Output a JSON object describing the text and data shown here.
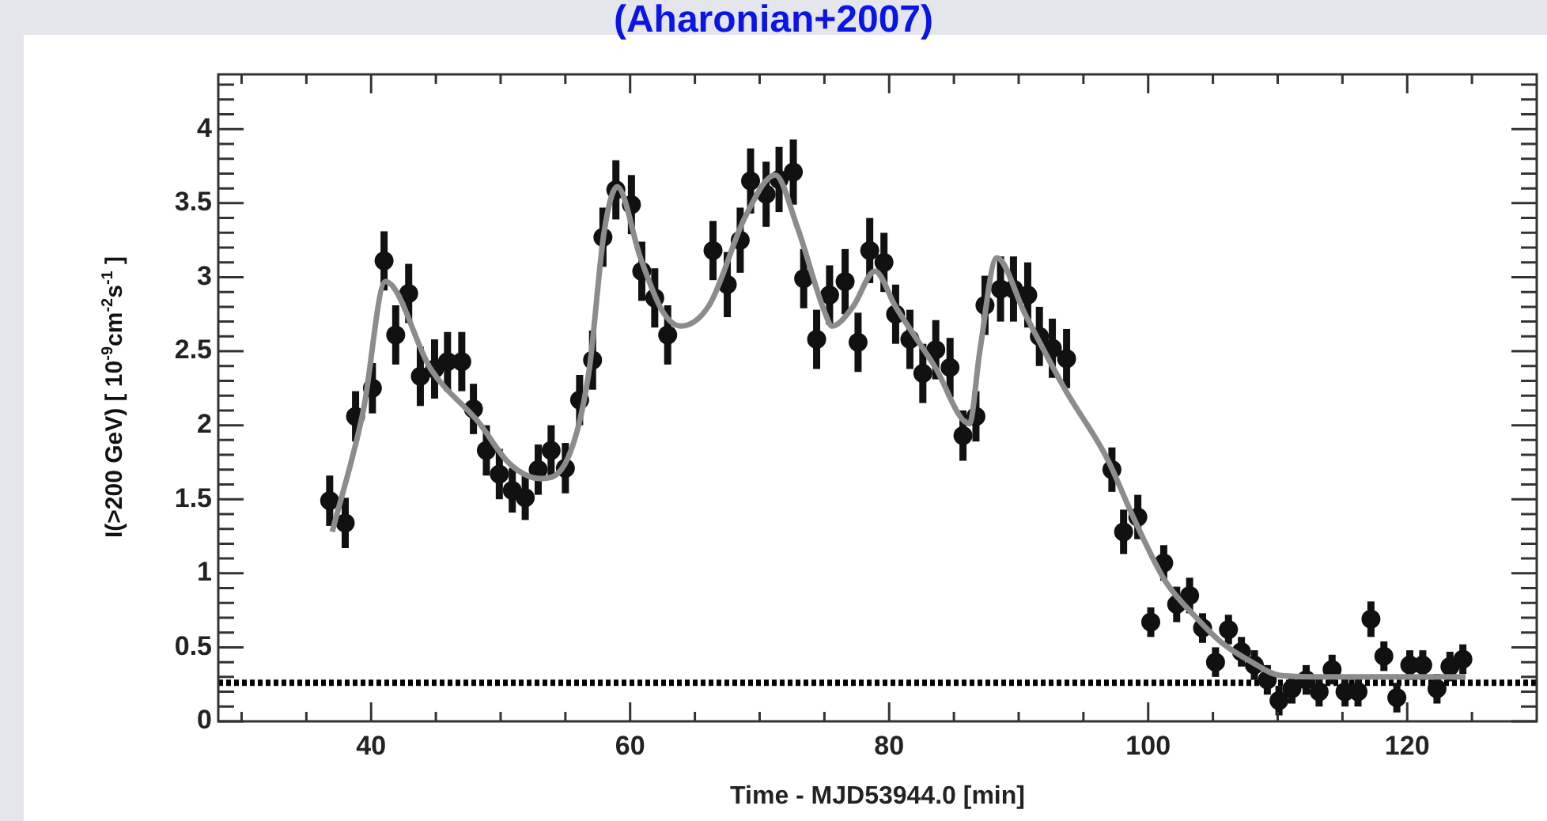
{
  "chart_data": {
    "type": "scatter",
    "title": "(Aharonian+2007)",
    "xlabel": "Time - MJD53944.0 [min]",
    "ylabel": "I(>200 GeV) [ 10$^{-9}$cm$^{-2}$s$^{-1}$ ]",
    "xlim": [
      28.2,
      130
    ],
    "ylim": [
      0,
      4.37
    ],
    "xticks": [
      {
        "value": 30,
        "label": null
      },
      {
        "value": 35,
        "label": null
      },
      40,
      {
        "value": 45,
        "label": null
      },
      {
        "value": 50,
        "label": null
      },
      {
        "value": 55,
        "label": null
      },
      60,
      {
        "value": 65,
        "label": null
      },
      {
        "value": 70,
        "label": null
      },
      {
        "value": 75,
        "label": null
      },
      80,
      {
        "value": 85,
        "label": null
      },
      {
        "value": 90,
        "label": null
      },
      {
        "value": 95,
        "label": null
      },
      100,
      {
        "value": 105,
        "label": null
      },
      {
        "value": 110,
        "label": null
      },
      {
        "value": 115,
        "label": null
      },
      120,
      {
        "value": 125,
        "label": null
      }
    ],
    "yticks": [
      0,
      {
        "value": 0.1,
        "label": null
      },
      {
        "value": 0.2,
        "label": null
      },
      {
        "value": 0.3,
        "label": null
      },
      {
        "value": 0.4,
        "label": null
      },
      0.5,
      {
        "value": 0.6,
        "label": null
      },
      {
        "value": 0.7,
        "label": null
      },
      {
        "value": 0.8,
        "label": null
      },
      {
        "value": 0.9,
        "label": null
      },
      1,
      {
        "value": 1.1,
        "label": null
      },
      {
        "value": 1.2,
        "label": null
      },
      {
        "value": 1.3,
        "label": null
      },
      {
        "value": 1.4,
        "label": null
      },
      1.5,
      {
        "value": 1.6,
        "label": null
      },
      {
        "value": 1.7,
        "label": null
      },
      {
        "value": 1.8,
        "label": null
      },
      {
        "value": 1.9,
        "label": null
      },
      2,
      {
        "value": 2.1,
        "label": null
      },
      {
        "value": 2.2,
        "label": null
      },
      {
        "value": 2.3,
        "label": null
      },
      {
        "value": 2.4,
        "label": null
      },
      2.5,
      {
        "value": 2.6,
        "label": null
      },
      {
        "value": 2.7,
        "label": null
      },
      {
        "value": 2.8,
        "label": null
      },
      {
        "value": 2.9,
        "label": null
      },
      3,
      {
        "value": 3.1,
        "label": null
      },
      {
        "value": 3.2,
        "label": null
      },
      {
        "value": 3.3,
        "label": null
      },
      {
        "value": 3.4,
        "label": null
      },
      3.5,
      {
        "value": 3.6,
        "label": null
      },
      {
        "value": 3.7,
        "label": null
      },
      {
        "value": 3.8,
        "label": null
      },
      {
        "value": 3.9,
        "label": null
      },
      4,
      {
        "value": 4.1,
        "label": null
      },
      {
        "value": 4.2,
        "label": null
      },
      {
        "value": 4.3,
        "label": null
      }
    ],
    "grid": false,
    "legend": false,
    "marker": "circle",
    "ref_lines": [
      {
        "axis": "y",
        "value": 0.26,
        "color": "#000000",
        "line_style": "dotted"
      }
    ],
    "series": [
      {
        "color": "#111111",
        "x": [
          36.8,
          38.0,
          38.8,
          40.1,
          41.0,
          41.9,
          42.9,
          43.8,
          44.9,
          45.9,
          47.0,
          47.9,
          48.9,
          49.9,
          50.9,
          51.9,
          52.9,
          53.9,
          55.0,
          56.1,
          57.1,
          57.9,
          58.9,
          60.1,
          60.9,
          61.9,
          62.9,
          66.4,
          67.5,
          68.5,
          69.3,
          70.5,
          71.5,
          72.6,
          73.4,
          74.4,
          75.4,
          76.6,
          77.6,
          78.5,
          79.6,
          80.5,
          81.6,
          82.6,
          83.6,
          84.7,
          85.7,
          86.7,
          87.4,
          88.6,
          89.6,
          90.7,
          91.6,
          92.6,
          93.7,
          97.2,
          98.1,
          99.2,
          100.2,
          101.2,
          102.2,
          103.2,
          104.2,
          105.2,
          106.2,
          107.2,
          108.2,
          109.2,
          110.1,
          111.1,
          112.2,
          113.2,
          114.2,
          115.2,
          116.2,
          117.2,
          118.2,
          119.2,
          120.2,
          121.2,
          122.3,
          123.3,
          124.3
        ],
        "values": [
          1.49,
          1.34,
          2.06,
          2.25,
          3.11,
          2.61,
          2.89,
          2.33,
          2.38,
          2.43,
          2.43,
          2.11,
          1.83,
          1.67,
          1.56,
          1.51,
          1.7,
          1.83,
          1.71,
          2.17,
          2.44,
          3.27,
          3.59,
          3.49,
          3.04,
          2.86,
          2.61,
          3.18,
          2.95,
          3.25,
          3.65,
          3.56,
          3.66,
          3.71,
          2.99,
          2.58,
          2.88,
          2.97,
          2.56,
          3.18,
          3.1,
          2.75,
          2.58,
          2.35,
          2.51,
          2.39,
          1.93,
          2.06,
          2.81,
          2.92,
          2.92,
          2.88,
          2.6,
          2.52,
          2.45,
          1.7,
          1.28,
          1.38,
          0.67,
          1.07,
          0.79,
          0.85,
          0.63,
          0.4,
          0.62,
          0.47,
          0.38,
          0.28,
          0.14,
          0.22,
          0.28,
          0.2,
          0.35,
          0.2,
          0.2,
          0.69,
          0.44,
          0.16,
          0.38,
          0.38,
          0.22,
          0.37,
          0.42
        ],
        "errors": [
          0.17,
          0.17,
          0.17,
          0.17,
          0.2,
          0.2,
          0.2,
          0.2,
          0.2,
          0.2,
          0.2,
          0.17,
          0.17,
          0.17,
          0.15,
          0.15,
          0.17,
          0.17,
          0.17,
          0.17,
          0.2,
          0.2,
          0.2,
          0.2,
          0.2,
          0.2,
          0.2,
          0.2,
          0.22,
          0.22,
          0.22,
          0.22,
          0.22,
          0.22,
          0.2,
          0.2,
          0.2,
          0.22,
          0.2,
          0.22,
          0.2,
          0.2,
          0.2,
          0.2,
          0.2,
          0.2,
          0.17,
          0.17,
          0.2,
          0.22,
          0.22,
          0.22,
          0.2,
          0.2,
          0.2,
          0.15,
          0.15,
          0.15,
          0.1,
          0.12,
          0.12,
          0.12,
          0.1,
          0.1,
          0.1,
          0.1,
          0.1,
          0.1,
          0.1,
          0.1,
          0.1,
          0.1,
          0.1,
          0.1,
          0.1,
          0.12,
          0.1,
          0.1,
          0.1,
          0.1,
          0.1,
          0.1,
          0.1
        ]
      },
      {
        "type": "line",
        "color": "#8c8c8c",
        "marker": "none",
        "line_style": "solid",
        "x": [
          37.0,
          39.4,
          41.1,
          44.6,
          48.3,
          50.7,
          53.1,
          55.2,
          56.8,
          58.0,
          59.0,
          60.8,
          62.5,
          63.9,
          66.1,
          68.9,
          71.2,
          72.9,
          75.0,
          75.6,
          77.2,
          78.9,
          80.5,
          83.5,
          86.2,
          87.0,
          88.3,
          90.5,
          93.6,
          96.8,
          99.0,
          101.3,
          103.5,
          105.7,
          108.0,
          110.2,
          114.0,
          118.0,
          122.0,
          124.5
        ],
        "values": [
          1.28,
          2.1,
          2.97,
          2.38,
          2.02,
          1.74,
          1.64,
          1.78,
          2.35,
          3.31,
          3.61,
          3.13,
          2.77,
          2.67,
          2.81,
          3.41,
          3.69,
          3.34,
          2.77,
          2.67,
          2.8,
          3.04,
          2.8,
          2.4,
          2.01,
          2.5,
          3.13,
          2.75,
          2.24,
          1.78,
          1.35,
          0.95,
          0.72,
          0.53,
          0.4,
          0.31,
          0.3,
          0.3,
          0.3,
          0.3
        ]
      }
    ]
  }
}
